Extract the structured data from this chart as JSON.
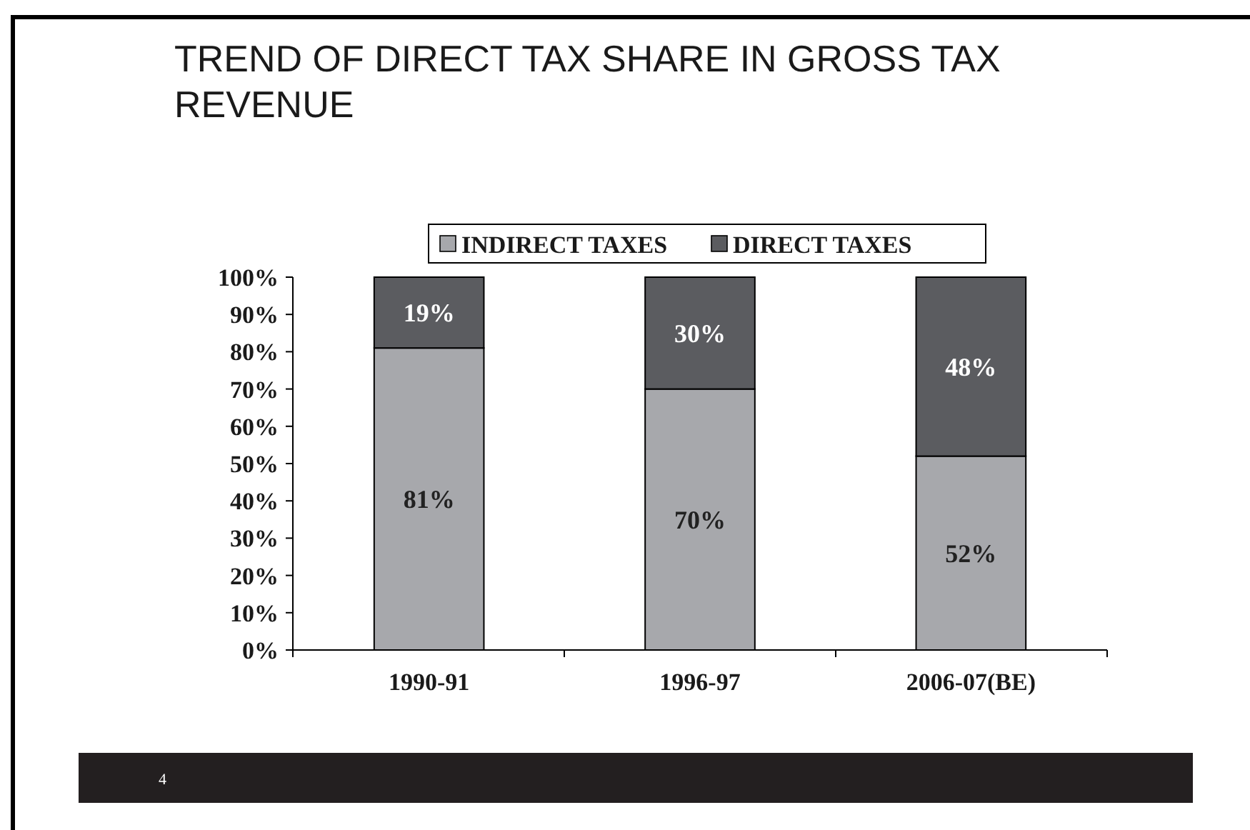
{
  "chart_data": {
    "type": "bar",
    "title": "TREND OF DIRECT TAX SHARE IN GROSS TAX REVENUE",
    "categories": [
      "1990-91",
      "1996-97",
      "2006-07(BE)"
    ],
    "series": [
      {
        "name": "INDIRECT TAXES",
        "color": "#a7a8ac",
        "values": [
          81,
          70,
          52
        ],
        "value_labels": [
          "81%",
          "70%",
          "52%"
        ]
      },
      {
        "name": "DIRECT TAXES",
        "color": "#5b5c60",
        "values": [
          19,
          30,
          48
        ],
        "value_labels": [
          "19%",
          "30%",
          "48%"
        ]
      }
    ],
    "stacked": true,
    "ylim": [
      0,
      100
    ],
    "yticks": [
      {
        "value": 0,
        "label": "0%"
      },
      {
        "value": 10,
        "label": "10%"
      },
      {
        "value": 20,
        "label": "20%"
      },
      {
        "value": 30,
        "label": "30%"
      },
      {
        "value": 40,
        "label": "40%"
      },
      {
        "value": 50,
        "label": "50%"
      },
      {
        "value": 60,
        "label": "60%"
      },
      {
        "value": 70,
        "label": "70%"
      },
      {
        "value": 80,
        "label": "80%"
      },
      {
        "value": 90,
        "label": "90%"
      },
      {
        "value": 100,
        "label": "100%"
      }
    ],
    "legend": "top",
    "grid": false,
    "annotations": [
      "4"
    ]
  }
}
